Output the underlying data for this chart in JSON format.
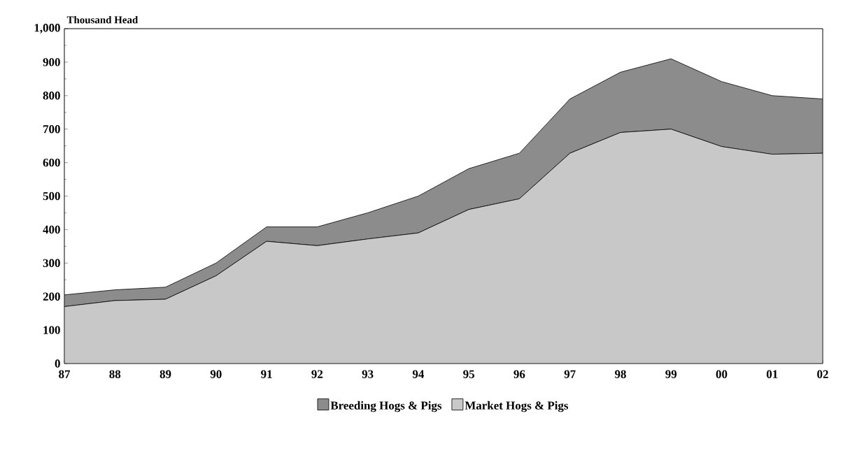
{
  "chart_data": {
    "type": "area",
    "stacked": true,
    "ylabel": "Thousand Head",
    "categories": [
      "87",
      "88",
      "89",
      "90",
      "91",
      "92",
      "93",
      "94",
      "95",
      "96",
      "97",
      "98",
      "99",
      "00",
      "01",
      "02"
    ],
    "series": [
      {
        "name": "Market Hogs & Pigs",
        "color": "#c8c8c8",
        "values": [
          170,
          188,
          192,
          262,
          365,
          352,
          372,
          390,
          460,
          492,
          628,
          690,
          700,
          648,
          625,
          628
        ]
      },
      {
        "name": "Breeding Hogs & Pigs",
        "color": "#8c8c8c",
        "values": [
          35,
          32,
          36,
          38,
          43,
          56,
          78,
          110,
          122,
          136,
          162,
          180,
          210,
          194,
          175,
          162
        ]
      }
    ],
    "ylim": [
      0,
      1000
    ],
    "yticks": [
      0,
      100,
      200,
      300,
      400,
      500,
      600,
      700,
      800,
      900,
      {
        "value": 1000,
        "label": "1,000"
      }
    ],
    "legend": "bottom",
    "grid": false
  }
}
